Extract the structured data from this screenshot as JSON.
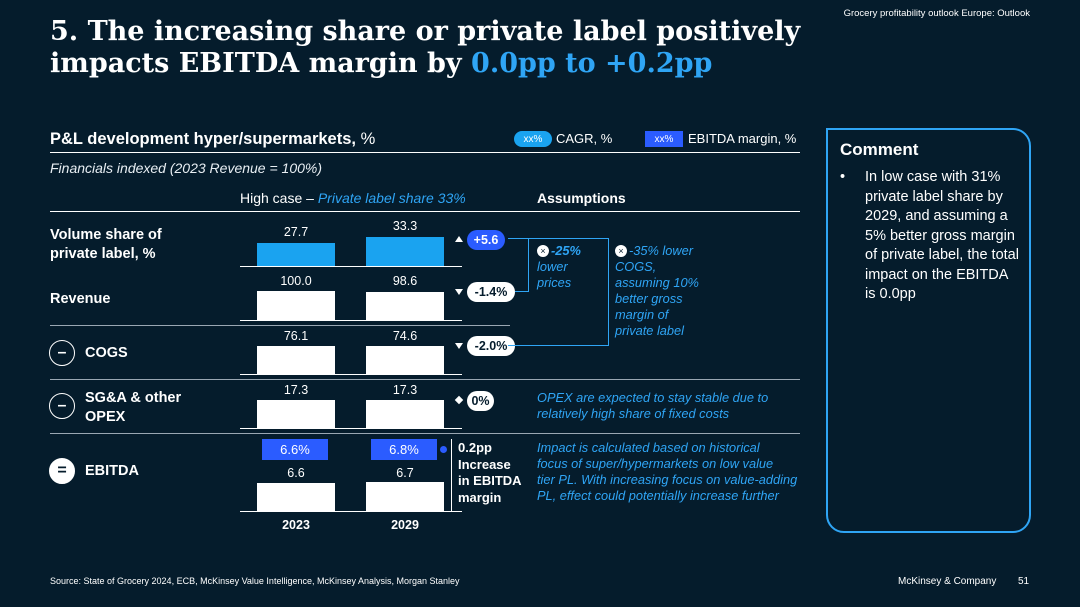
{
  "header": {
    "note": "Grocery profitability outlook Europe: Outlook",
    "title_prefix": "5. The increasing share or private label positively impacts EBITDA margin by ",
    "title_highlight": "0.0pp to +0.2pp"
  },
  "chart_section": {
    "title": "P&L development hyper/supermarkets,",
    "title_unit": "%",
    "subtitle": "Financials indexed (2023 Revenue = 100%)",
    "legend": [
      {
        "chip": "xx%",
        "label": "CAGR, %",
        "color": "#1aa3f0"
      },
      {
        "chip": "xx%",
        "label": "EBITDA margin, %",
        "color": "#2b5cff"
      }
    ],
    "column_heading_prefix": "High case –",
    "column_heading_highlight": "Private label share 33%",
    "assumptions_heading": "Assumptions"
  },
  "rows": [
    {
      "label_line1": "Volume share of",
      "label_line2": "private label, %",
      "operator": "",
      "v2023": "27.7",
      "v2029": "33.3",
      "delta": "+5.6",
      "direction": "up"
    },
    {
      "label_line1": "Revenue",
      "label_line2": "",
      "operator": "",
      "v2023": "100.0",
      "v2029": "98.6",
      "delta": "-1.4%",
      "direction": "down"
    },
    {
      "label_line1": "COGS",
      "label_line2": "",
      "operator": "–",
      "v2023": "76.1",
      "v2029": "74.6",
      "delta": "-2.0%",
      "direction": "down"
    },
    {
      "label_line1": "SG&A & other",
      "label_line2": "OPEX",
      "operator": "–",
      "v2023": "17.3",
      "v2029": "17.3",
      "delta": "0%",
      "direction": "none"
    },
    {
      "label_line1": "EBITDA",
      "label_line2": "",
      "operator": "=",
      "v2023": "6.6",
      "v2029": "6.7",
      "margin2023": "6.6%",
      "margin2029": "6.8%"
    }
  ],
  "impact": {
    "line1": "0.2pp",
    "line2": "Increase",
    "line3": "in EBITDA",
    "line4": "margin"
  },
  "years": [
    "2023",
    "2029"
  ],
  "assumptions": {
    "price_note": {
      "badge": "×",
      "line1": "-25%",
      "line2": "lower",
      "line3": "prices"
    },
    "cogs_note": {
      "badge": "×",
      "line1": "-35% lower",
      "line2": "COGS,",
      "line3": "assuming 10%",
      "line4": "better gross",
      "line5": "margin of",
      "line6": "private label"
    },
    "opex_note": {
      "line1": "OPEX are expected to stay stable due to",
      "line2": "relatively high share of fixed costs"
    },
    "impact_note": {
      "line1": "Impact is calculated based on historical",
      "line2": "focus of super/hypermarkets on low value",
      "line3": "tier PL. With increasing focus on value-adding",
      "line4": "PL, effect could potentially increase further"
    }
  },
  "comment": {
    "title": "Comment",
    "bullet": "•",
    "text": "In low case with 31% private label share by 2029, and assuming a 5% better gross margin of private label, the total impact on the EBITDA is 0.0pp"
  },
  "footer": {
    "source": "Source: State of Grocery 2024, ECB, McKinsey Value Intelligence, McKinsey Analysis, Morgan Stanley",
    "brand": "McKinsey & Company",
    "page": "51"
  }
}
